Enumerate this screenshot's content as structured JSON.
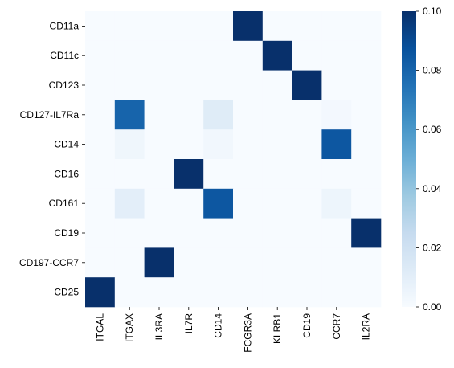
{
  "chart_data": {
    "type": "heatmap",
    "rows": [
      "CD11a",
      "CD11c",
      "CD123",
      "CD127-IL7Ra",
      "CD14",
      "CD16",
      "CD161",
      "CD19",
      "CD197-CCR7",
      "CD25"
    ],
    "columns": [
      "ITGAL",
      "ITGAX",
      "IL3RA",
      "IL7R",
      "CD14",
      "FCGR3A",
      "KLRB1",
      "CD19",
      "CCR7",
      "IL2RA"
    ],
    "values": [
      [
        0,
        0,
        0,
        0,
        0,
        0.1,
        0,
        0,
        0,
        0
      ],
      [
        0,
        0,
        0,
        0,
        0,
        0,
        0.1,
        0,
        0,
        0
      ],
      [
        0,
        0,
        0,
        0,
        0,
        0,
        0,
        0.1,
        0,
        0
      ],
      [
        0,
        0.08,
        0,
        0,
        0.012,
        0,
        0,
        0,
        0.002,
        0
      ],
      [
        0,
        0.004,
        0,
        0,
        0.003,
        0,
        0,
        0,
        0.085,
        0
      ],
      [
        0,
        0,
        0,
        0.1,
        0,
        0,
        0,
        0,
        0,
        0
      ],
      [
        0,
        0.01,
        0,
        0,
        0.085,
        0,
        0,
        0,
        0.005,
        0
      ],
      [
        0,
        0,
        0,
        0,
        0,
        0,
        0,
        0,
        0,
        0.1
      ],
      [
        0,
        0,
        0.1,
        0,
        0,
        0,
        0,
        0,
        0,
        0
      ],
      [
        0.1,
        0,
        0,
        0,
        0,
        0,
        0,
        0,
        0,
        0
      ]
    ],
    "colorbar": {
      "min": 0,
      "max": 0.1,
      "ticks": [
        "0.00",
        "0.02",
        "0.04",
        "0.06",
        "0.08",
        "0.10"
      ],
      "colormap": "Blues",
      "stops": [
        "#f7fbff",
        "#deebf7",
        "#c6dbef",
        "#9ecae1",
        "#6baed6",
        "#4292c6",
        "#2171b5",
        "#08519c",
        "#08306b"
      ]
    }
  }
}
